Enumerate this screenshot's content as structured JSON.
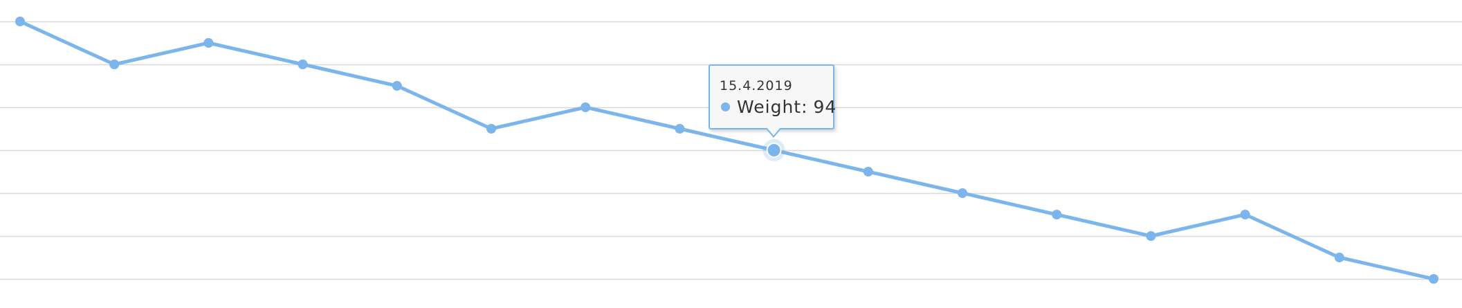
{
  "chart_data": {
    "type": "line",
    "x": [
      "",
      "",
      "",
      "",
      "",
      "",
      "",
      "",
      "15.4.2019",
      "",
      "",
      "",
      "",
      "",
      "",
      ""
    ],
    "series": [
      {
        "name": "Weight",
        "values": [
          100,
          98,
          99,
          98,
          97,
          95,
          96,
          95,
          94,
          93,
          92,
          91,
          90,
          91,
          89,
          88
        ]
      }
    ],
    "ylim": [
      87,
      100.5
    ],
    "grid": true,
    "legend": "none",
    "color": "#7cb5ec",
    "gridline_color": "#d8d8d8",
    "highlighted_index": 8
  },
  "tooltip": {
    "date": "15.4.2019",
    "series_label": "Weight:",
    "value": "94"
  }
}
